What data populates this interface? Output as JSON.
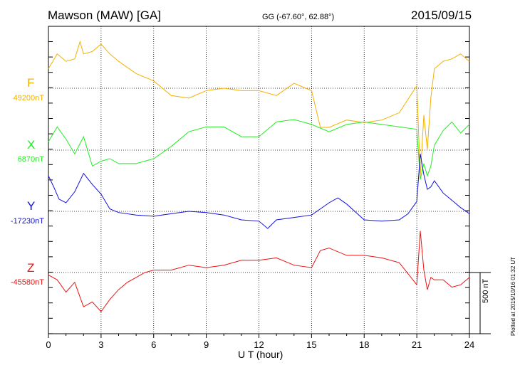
{
  "header": {
    "title": "Mawson (MAW)  [GA]",
    "coordinates": "GG (-67.60°,  62.88°)",
    "date": "2015/09/15"
  },
  "footnote": "Plotted at 2015/10/16 01:32 UT",
  "chart_data": {
    "type": "line",
    "xlabel": "U T (hour)",
    "xlim": [
      0,
      24
    ],
    "xticks": [
      "0",
      "3",
      "6",
      "9",
      "12",
      "15",
      "18",
      "21",
      "24"
    ],
    "grid": true,
    "scale_bar": {
      "label": "500 nT",
      "value_nT": 500
    },
    "series": [
      {
        "name": "F",
        "baseline_label": "49200nT",
        "baseline_nT": 49200,
        "color": "#f5b000",
        "x": [
          0,
          0.5,
          1,
          1.5,
          1.8,
          2,
          2.5,
          3,
          3.5,
          4,
          5,
          6,
          7,
          8,
          9,
          10,
          11,
          12,
          13,
          14,
          15,
          15.5,
          16,
          17,
          18,
          19,
          20,
          21,
          21.2,
          21.4,
          21.6,
          21.8,
          22,
          22.5,
          23,
          23.5,
          24
        ],
        "y": [
          49360,
          49480,
          49420,
          49440,
          49580,
          49480,
          49500,
          49560,
          49480,
          49420,
          49320,
          49260,
          49140,
          49120,
          49180,
          49200,
          49180,
          49180,
          49140,
          49240,
          49180,
          48880,
          48880,
          48940,
          48920,
          48940,
          49000,
          49220,
          48480,
          48980,
          48700,
          49120,
          49360,
          49420,
          49440,
          49480,
          49420
        ]
      },
      {
        "name": "X",
        "baseline_label": "6870nT",
        "baseline_nT": 6870,
        "color": "#22ee22",
        "x": [
          0,
          0.5,
          1,
          1.5,
          2,
          2.5,
          3,
          3.5,
          4,
          5,
          6,
          7,
          8,
          9,
          10,
          11,
          12,
          13,
          14,
          15,
          16,
          17,
          18,
          19,
          20,
          21,
          21.2,
          21.4,
          21.6,
          21.8,
          22,
          22.5,
          23,
          23.5,
          24
        ],
        "y": [
          6940,
          7060,
          6960,
          6840,
          6980,
          6740,
          6780,
          6800,
          6760,
          6760,
          6800,
          6900,
          7020,
          7060,
          7060,
          6980,
          6980,
          7100,
          7120,
          7080,
          7020,
          7080,
          7100,
          7080,
          7060,
          7040,
          6630,
          6760,
          6660,
          6740,
          6910,
          7030,
          7100,
          7010,
          7080
        ]
      },
      {
        "name": "Y",
        "baseline_label": "-17230nT",
        "baseline_nT": -17230,
        "color": "#1010dd",
        "x": [
          0,
          0.3,
          0.6,
          1,
          1.5,
          2,
          2.5,
          3,
          3.5,
          4,
          5,
          6,
          7,
          8,
          9,
          10,
          11,
          12,
          12.5,
          13,
          14,
          15,
          16,
          16.5,
          17,
          18,
          19,
          20,
          20.5,
          21,
          21.2,
          21.4,
          21.6,
          21.8,
          22,
          22.5,
          23,
          23.5,
          24
        ],
        "y": [
          -16940,
          -17030,
          -17130,
          -17160,
          -17070,
          -16920,
          -17010,
          -17090,
          -17210,
          -17240,
          -17260,
          -17270,
          -17250,
          -17230,
          -17240,
          -17260,
          -17300,
          -17310,
          -17370,
          -17300,
          -17280,
          -17260,
          -17160,
          -17120,
          -17170,
          -17300,
          -17310,
          -17300,
          -17250,
          -17150,
          -16760,
          -16930,
          -17050,
          -17030,
          -16980,
          -17080,
          -17140,
          -17200,
          -17250
        ]
      },
      {
        "name": "Z",
        "baseline_label": "-45580nT",
        "baseline_nT": -45580,
        "color": "#ee1111",
        "x": [
          0,
          0.5,
          1,
          1.5,
          1.8,
          2,
          2.5,
          3,
          3.5,
          4,
          4.5,
          5,
          5.5,
          6,
          7,
          8,
          9,
          10,
          11,
          12,
          13,
          14,
          15,
          15.5,
          16,
          17,
          18,
          19,
          20,
          21,
          21.2,
          21.4,
          21.6,
          21.8,
          22,
          22.5,
          23,
          23.5,
          24
        ],
        "y": [
          -45600,
          -45640,
          -45740,
          -45660,
          -45780,
          -45860,
          -45820,
          -45900,
          -45800,
          -45720,
          -45660,
          -45620,
          -45580,
          -45560,
          -45560,
          -45520,
          -45540,
          -45520,
          -45480,
          -45480,
          -45460,
          -45520,
          -45540,
          -45400,
          -45380,
          -45440,
          -45440,
          -45460,
          -45500,
          -45680,
          -45240,
          -45560,
          -45720,
          -45620,
          -45640,
          -45640,
          -45700,
          -45680,
          -45620
        ]
      }
    ]
  }
}
